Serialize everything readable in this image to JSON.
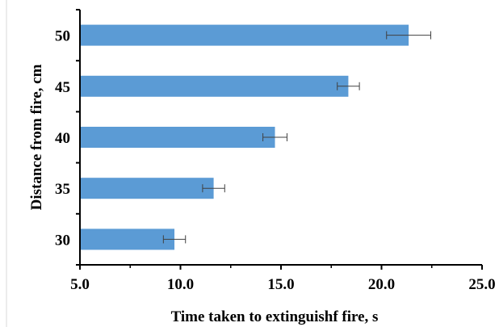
{
  "chart_data": {
    "type": "bar",
    "orientation": "horizontal",
    "categories": [
      "30",
      "35",
      "40",
      "45",
      "50"
    ],
    "values": [
      9.7,
      11.65,
      14.7,
      18.35,
      21.35
    ],
    "errors": [
      0.55,
      0.55,
      0.6,
      0.55,
      1.1
    ],
    "xlabel": "Time taken to extinguishf fire, s",
    "ylabel": "Distance from fire, cm",
    "xlim": [
      5.0,
      25.0
    ],
    "xticks": [
      "5.0",
      "10.0",
      "15.0",
      "20.0",
      "25.0"
    ],
    "grid": false,
    "legend": "none",
    "colors": {
      "bar": "#5b9bd5",
      "axis": "#000000",
      "error_bar": "#404040"
    }
  }
}
